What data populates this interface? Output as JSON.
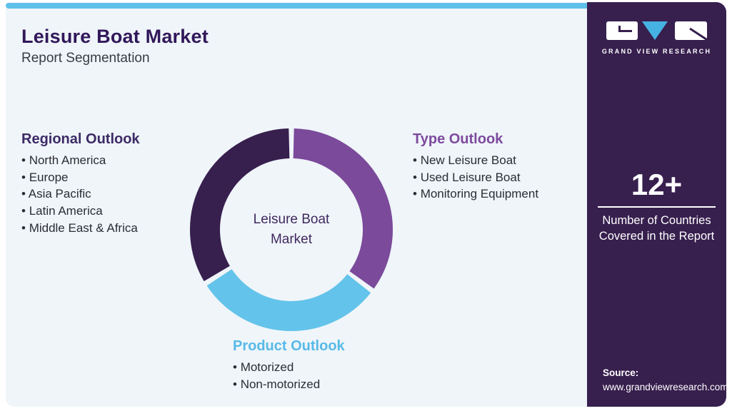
{
  "header": {
    "title": "Leisure Boat Market",
    "subtitle": "Report Segmentation"
  },
  "sections": {
    "regional": {
      "heading": "Regional Outlook",
      "items": [
        "North America",
        "Europe",
        "Asia Pacific",
        "Latin America",
        "Middle East & Africa"
      ]
    },
    "type": {
      "heading": "Type Outlook",
      "items": [
        "New Leisure Boat",
        "Used Leisure Boat",
        "Monitoring Equipment"
      ]
    },
    "product": {
      "heading": "Product Outlook",
      "items": [
        "Motorized",
        "Non-motorized"
      ]
    }
  },
  "chart": {
    "type": "donut",
    "center_label": "Leisure Boat Market",
    "gap_degrees": 3,
    "segments": [
      {
        "label": "Type Outlook",
        "color": "#7b4a9b",
        "start_deg": 0,
        "end_deg": 127
      },
      {
        "label": "Product Outlook",
        "color": "#63c3ea",
        "start_deg": 127,
        "end_deg": 238
      },
      {
        "label": "Regional Outlook",
        "color": "#371f4e",
        "start_deg": 238,
        "end_deg": 360
      }
    ]
  },
  "sidebar": {
    "logo": {
      "brand": "GRAND VIEW RESEARCH"
    },
    "stat": {
      "value": "12+",
      "label": "Number of Countries Covered in the Report"
    },
    "source": {
      "label": "Source:",
      "url": "www.grandviewresearch.com"
    }
  },
  "colors": {
    "top_bar": "#5fc0ea",
    "card_bg": "#eff5f9",
    "sidebar_bg": "#371f4e",
    "title_text": "#31175a",
    "regional_heading": "#3d2a66",
    "type_heading": "#7e4a9e",
    "product_heading": "#57b9e8",
    "donut_dark": "#371f4e",
    "donut_purple": "#7b4a9b",
    "donut_blue": "#63c3ea",
    "logo_v_blue": "#45b2e2"
  }
}
